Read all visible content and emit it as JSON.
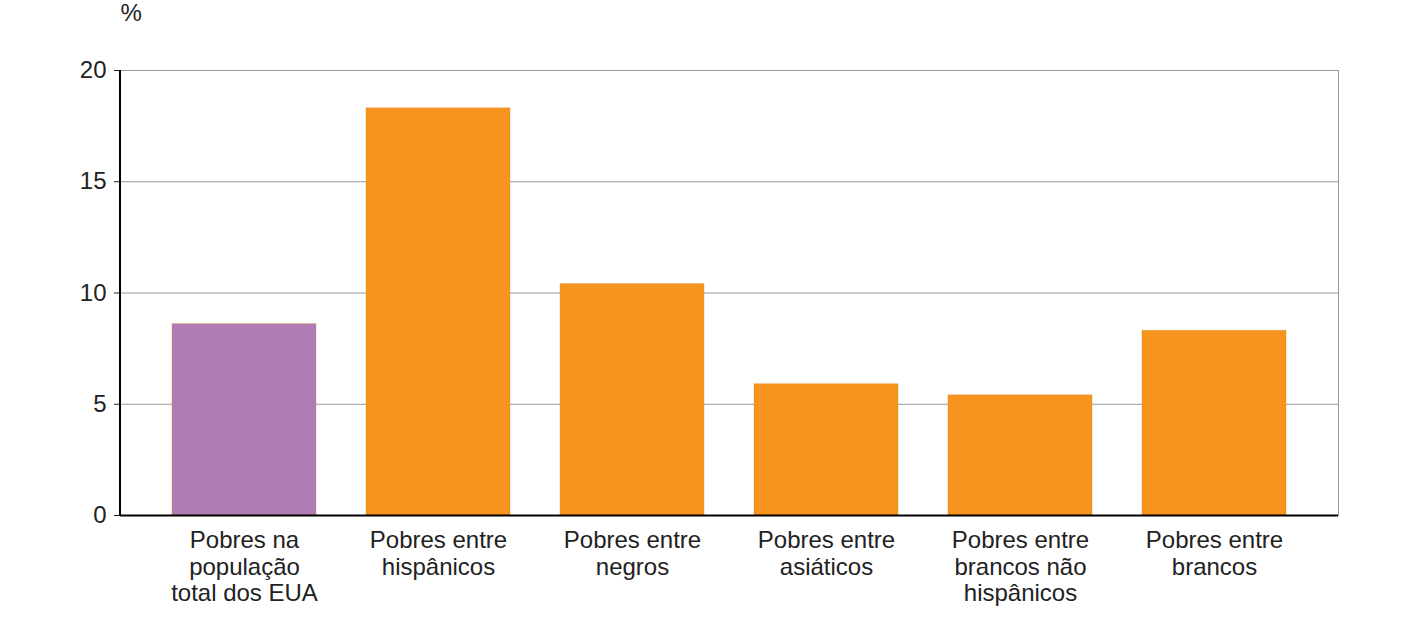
{
  "chart_data": {
    "type": "bar",
    "y_label": "%",
    "categories": [
      "Pobres na\npopulação\ntotal dos EUA",
      "Pobres entre\nhispânicos",
      "Pobres entre\nnegros",
      "Pobres entre\nasiáticos",
      "Pobres entre\nbrancos não\nhispânicos",
      "Pobres entre\nbrancos"
    ],
    "values": [
      8.6,
      18.3,
      10.4,
      5.9,
      5.4,
      8.3
    ],
    "colors": [
      "#b07cb6",
      "#f7941d",
      "#f7941d",
      "#f7941d",
      "#f7941d",
      "#f7941d"
    ],
    "ylim": [
      0,
      20
    ],
    "yticks": [
      0,
      5,
      10,
      15,
      20
    ],
    "grid": true
  }
}
